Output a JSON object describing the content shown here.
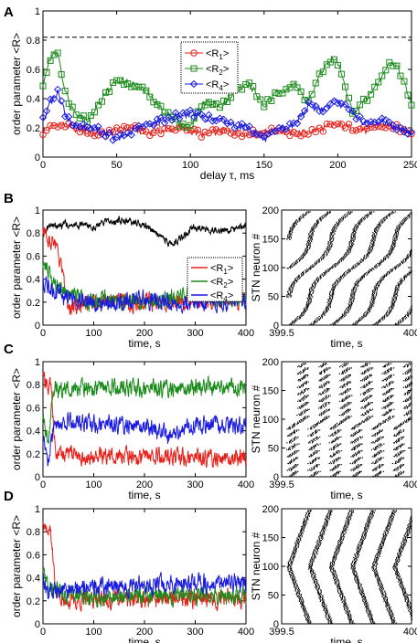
{
  "panels": {
    "A": "A",
    "B": "B",
    "C": "C",
    "D": "D"
  },
  "chart_data": [
    {
      "panel": "A",
      "type": "line",
      "xlabel": "delay τ, ms",
      "ylabel": "order parameter <R>",
      "xlim": [
        0,
        250
      ],
      "ylim": [
        0,
        1
      ],
      "xticks": [
        0,
        50,
        100,
        150,
        200,
        250
      ],
      "yticks": [
        0,
        0.2,
        0.4,
        0.6,
        0.8,
        1
      ],
      "reference_line": {
        "y": 0.82,
        "style": "dashed"
      },
      "legend": {
        "placement": "top-center",
        "entries": [
          "<R1>",
          "<R2>",
          "<R4>"
        ]
      },
      "series": [
        {
          "name": "<R1>",
          "color": "#e8201a",
          "marker": "circle",
          "x": [
            0,
            10,
            20,
            30,
            40,
            50,
            60,
            70,
            80,
            90,
            100,
            110,
            120,
            130,
            140,
            150,
            160,
            170,
            180,
            190,
            200,
            210,
            220,
            230,
            240,
            250
          ],
          "y": [
            0.17,
            0.23,
            0.2,
            0.17,
            0.16,
            0.18,
            0.2,
            0.17,
            0.18,
            0.2,
            0.18,
            0.15,
            0.18,
            0.17,
            0.16,
            0.17,
            0.18,
            0.16,
            0.17,
            0.2,
            0.22,
            0.2,
            0.18,
            0.22,
            0.2,
            0.17
          ]
        },
        {
          "name": "<R2>",
          "color": "#1a8a1a",
          "marker": "square",
          "x": [
            0,
            5,
            10,
            15,
            20,
            30,
            40,
            50,
            60,
            70,
            80,
            90,
            100,
            110,
            120,
            130,
            140,
            150,
            160,
            170,
            180,
            190,
            195,
            200,
            210,
            220,
            230,
            235,
            240,
            250
          ],
          "y": [
            0.5,
            0.68,
            0.73,
            0.45,
            0.33,
            0.25,
            0.4,
            0.53,
            0.5,
            0.45,
            0.33,
            0.25,
            0.2,
            0.38,
            0.35,
            0.45,
            0.5,
            0.35,
            0.45,
            0.5,
            0.38,
            0.6,
            0.67,
            0.65,
            0.3,
            0.4,
            0.55,
            0.65,
            0.63,
            0.38
          ]
        },
        {
          "name": "<R4>",
          "color": "#1a1ae0",
          "marker": "diamond",
          "x": [
            0,
            5,
            10,
            15,
            20,
            30,
            40,
            50,
            60,
            70,
            80,
            90,
            100,
            110,
            120,
            130,
            140,
            150,
            160,
            170,
            180,
            190,
            200,
            210,
            220,
            230,
            240,
            250
          ],
          "y": [
            0.25,
            0.38,
            0.44,
            0.3,
            0.22,
            0.2,
            0.18,
            0.12,
            0.17,
            0.22,
            0.25,
            0.28,
            0.3,
            0.27,
            0.25,
            0.22,
            0.2,
            0.12,
            0.18,
            0.22,
            0.35,
            0.33,
            0.38,
            0.3,
            0.22,
            0.25,
            0.2,
            0.17
          ]
        }
      ]
    },
    {
      "panel": "B",
      "type": "line",
      "xlabel": "time, s",
      "ylabel": "order parameter <R>",
      "xlim": [
        0,
        400
      ],
      "ylim": [
        0,
        1
      ],
      "xticks": [
        0,
        100,
        200,
        300,
        400
      ],
      "yticks": [
        0,
        0.2,
        0.4,
        0.6,
        0.8,
        1
      ],
      "legend": {
        "placement": "right",
        "entries": [
          "<R1>",
          "<R2>",
          "<R4>"
        ]
      },
      "series": [
        {
          "color": "#000000",
          "x": [
            0,
            50,
            100,
            150,
            200,
            250,
            300,
            350,
            400
          ],
          "y": [
            0.84,
            0.88,
            0.86,
            0.92,
            0.87,
            0.7,
            0.85,
            0.82,
            0.87
          ]
        },
        {
          "name": "<R1>",
          "color": "#e8201a",
          "x": [
            0,
            25,
            50,
            100,
            200,
            300,
            400
          ],
          "y": [
            0.84,
            0.7,
            0.18,
            0.2,
            0.2,
            0.22,
            0.22
          ]
        },
        {
          "name": "<R2>",
          "color": "#1a8a1a",
          "x": [
            0,
            25,
            50,
            100,
            200,
            300,
            400
          ],
          "y": [
            0.55,
            0.35,
            0.25,
            0.22,
            0.22,
            0.25,
            0.22
          ]
        },
        {
          "name": "<R4>",
          "color": "#1a1ae0",
          "x": [
            0,
            25,
            50,
            100,
            200,
            300,
            400
          ],
          "y": [
            0.4,
            0.28,
            0.25,
            0.2,
            0.22,
            0.2,
            0.22
          ]
        }
      ]
    },
    {
      "panel": "C",
      "type": "line",
      "xlabel": "time, s",
      "ylabel": "order parameter <R>",
      "xlim": [
        0,
        400
      ],
      "ylim": [
        0,
        1
      ],
      "xticks": [
        0,
        100,
        200,
        300,
        400
      ],
      "yticks": [
        0,
        0.2,
        0.4,
        0.6,
        0.8,
        1
      ],
      "series": [
        {
          "name": "<R1>",
          "color": "#e8201a",
          "x": [
            0,
            15,
            25,
            50,
            100,
            200,
            300,
            400
          ],
          "y": [
            0.85,
            0.78,
            0.22,
            0.18,
            0.18,
            0.18,
            0.16,
            0.17
          ]
        },
        {
          "name": "<R2>",
          "color": "#1a8a1a",
          "x": [
            0,
            10,
            20,
            50,
            100,
            200,
            300,
            400
          ],
          "y": [
            0.55,
            0.3,
            0.75,
            0.76,
            0.78,
            0.76,
            0.78,
            0.77
          ]
        },
        {
          "name": "<R4>",
          "color": "#1a1ae0",
          "x": [
            0,
            10,
            20,
            50,
            100,
            200,
            250,
            300,
            400
          ],
          "y": [
            0.35,
            0.15,
            0.42,
            0.48,
            0.45,
            0.45,
            0.35,
            0.45,
            0.45
          ]
        }
      ]
    },
    {
      "panel": "D",
      "type": "line",
      "xlabel": "time, s",
      "ylabel": "order parameter <R>",
      "xlim": [
        0,
        400
      ],
      "ylim": [
        0,
        1
      ],
      "xticks": [
        0,
        100,
        200,
        300,
        400
      ],
      "yticks": [
        0,
        0.2,
        0.4,
        0.6,
        0.8,
        1
      ],
      "series": [
        {
          "name": "<R1>",
          "color": "#e8201a",
          "x": [
            0,
            15,
            25,
            50,
            100,
            200,
            300,
            400
          ],
          "y": [
            0.85,
            0.8,
            0.25,
            0.22,
            0.2,
            0.22,
            0.22,
            0.22
          ]
        },
        {
          "name": "<R2>",
          "color": "#1a8a1a",
          "x": [
            0,
            10,
            20,
            50,
            100,
            200,
            300,
            400
          ],
          "y": [
            0.5,
            0.3,
            0.3,
            0.25,
            0.22,
            0.25,
            0.25,
            0.23
          ]
        },
        {
          "name": "<R4>",
          "color": "#1a1ae0",
          "x": [
            0,
            10,
            20,
            50,
            100,
            200,
            300,
            400
          ],
          "y": [
            0.4,
            0.25,
            0.3,
            0.3,
            0.32,
            0.33,
            0.35,
            0.35
          ]
        }
      ]
    },
    {
      "panel": "B-raster",
      "type": "scatter",
      "xlabel": "time, s",
      "ylabel": "STN neuron #",
      "xlim": [
        399.5,
        400
      ],
      "ylim": [
        0,
        200
      ],
      "xticklabels": [
        "399.5",
        "400"
      ],
      "yticks": [
        0,
        50,
        100,
        150,
        200
      ],
      "pattern": "bursts"
    },
    {
      "panel": "C-raster",
      "type": "scatter",
      "xlabel": "time, s",
      "ylabel": "STN neuron #",
      "xlim": [
        399.5,
        400
      ],
      "ylim": [
        0,
        200
      ],
      "xticklabels": [
        "399.5",
        "400"
      ],
      "yticks": [
        0,
        50,
        100,
        150,
        200
      ],
      "pattern": "blocks"
    },
    {
      "panel": "D-raster",
      "type": "scatter",
      "xlabel": "time, s",
      "ylabel": "STN neuron #",
      "xlim": [
        399.5,
        400
      ],
      "ylim": [
        0,
        200
      ],
      "xticklabels": [
        "399.5",
        "400"
      ],
      "yticks": [
        0,
        50,
        100,
        150,
        200
      ],
      "pattern": "waves"
    }
  ]
}
